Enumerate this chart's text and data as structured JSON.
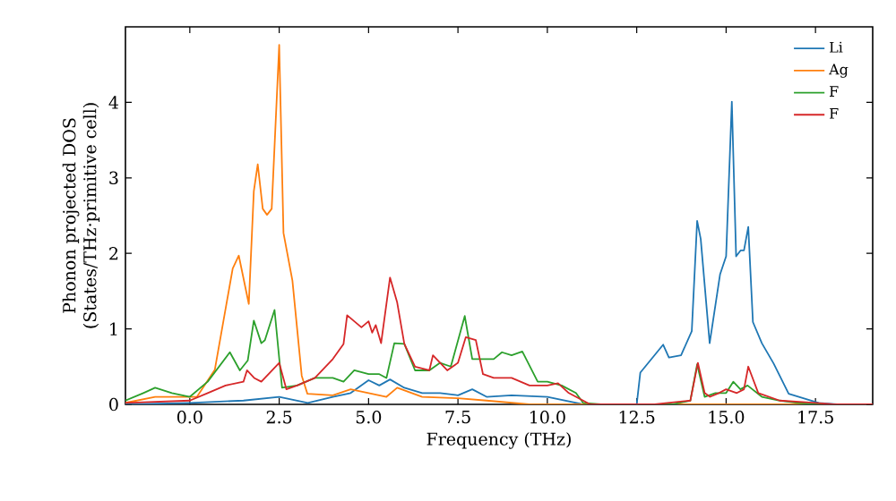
{
  "chart_data": {
    "type": "line",
    "xlabel": "Frequency (THz)",
    "ylabel": "Phonon projected DOS\n(States/THz·primitive cell)",
    "xlim": [
      -1.8,
      19.1
    ],
    "ylim": [
      0,
      5.0
    ],
    "xticks": [
      {
        "value": 0,
        "label": "0.0"
      },
      {
        "value": 2.5,
        "label": "2.5"
      },
      {
        "value": 5,
        "label": "5.0"
      },
      {
        "value": 7.5,
        "label": "7.5"
      },
      {
        "value": 10,
        "label": "10.0"
      },
      {
        "value": 12.5,
        "label": "12.5"
      },
      {
        "value": 15,
        "label": "15.0"
      },
      {
        "value": 17.5,
        "label": "17.5"
      }
    ],
    "yticks": [
      0,
      1,
      2,
      3,
      4
    ],
    "legend": "top right",
    "grid": false,
    "marker": "none",
    "line_style": "solid",
    "series": [
      {
        "name": "Li",
        "color": "#1f77b4",
        "x": [
          -1.8,
          0,
          1.5,
          2.5,
          3.3,
          4.0,
          4.5,
          5.0,
          5.3,
          5.6,
          6.0,
          6.5,
          7.0,
          7.5,
          7.9,
          8.3,
          9.0,
          10.0,
          11.0,
          12.5,
          12.6,
          13.24,
          13.4,
          13.74,
          14.04,
          14.19,
          14.29,
          14.54,
          14.83,
          15.0,
          15.16,
          15.28,
          15.41,
          15.5,
          15.62,
          15.75,
          16.0,
          16.33,
          16.75,
          17.59,
          18.1,
          19.1
        ],
        "values": [
          0.0,
          0.02,
          0.05,
          0.1,
          0.02,
          0.1,
          0.15,
          0.32,
          0.25,
          0.33,
          0.22,
          0.15,
          0.15,
          0.12,
          0.2,
          0.1,
          0.12,
          0.1,
          0.0,
          0.0,
          0.42,
          0.79,
          0.62,
          0.65,
          0.97,
          2.43,
          2.19,
          0.81,
          1.72,
          1.96,
          4.01,
          1.96,
          2.04,
          2.04,
          2.35,
          1.09,
          0.81,
          0.54,
          0.14,
          0.02,
          0.0,
          0.0
        ]
      },
      {
        "name": "Ag",
        "color": "#ff7f0e",
        "x": [
          -1.8,
          -0.97,
          0.2,
          0.7,
          1.2,
          1.37,
          1.65,
          1.79,
          1.9,
          2.04,
          2.16,
          2.29,
          2.5,
          2.62,
          2.87,
          3.13,
          3.29,
          4.0,
          4.5,
          5.0,
          5.5,
          5.8,
          6.5,
          7.5,
          8.3,
          9.5,
          19.1
        ],
        "values": [
          0.02,
          0.1,
          0.1,
          0.46,
          1.8,
          1.97,
          1.33,
          2.82,
          3.18,
          2.59,
          2.51,
          2.59,
          4.76,
          2.27,
          1.64,
          0.38,
          0.14,
          0.12,
          0.2,
          0.15,
          0.1,
          0.22,
          0.1,
          0.08,
          0.05,
          0.0,
          0.0
        ]
      },
      {
        "name": "F",
        "color": "#2ca02c",
        "x": [
          -1.8,
          -1.3,
          -0.97,
          -0.5,
          0,
          0.5,
          1.12,
          1.4,
          1.62,
          1.79,
          2.0,
          2.1,
          2.37,
          2.58,
          3.0,
          3.5,
          4.0,
          4.3,
          4.6,
          5.0,
          5.3,
          5.5,
          5.72,
          6.0,
          6.3,
          6.7,
          7.0,
          7.3,
          7.69,
          7.9,
          8.1,
          8.5,
          8.73,
          9.0,
          9.3,
          9.73,
          10.0,
          10.4,
          10.8,
          11.0,
          11.5,
          13.5,
          14.0,
          14.19,
          14.4,
          14.7,
          15.0,
          15.2,
          15.4,
          15.6,
          16.0,
          16.5,
          17.0,
          17.5,
          19.1
        ],
        "values": [
          0.05,
          0.15,
          0.22,
          0.15,
          0.1,
          0.3,
          0.69,
          0.45,
          0.58,
          1.11,
          0.81,
          0.85,
          1.25,
          0.22,
          0.25,
          0.35,
          0.35,
          0.3,
          0.45,
          0.4,
          0.4,
          0.35,
          0.81,
          0.8,
          0.45,
          0.45,
          0.55,
          0.5,
          1.17,
          0.6,
          0.6,
          0.6,
          0.69,
          0.65,
          0.7,
          0.3,
          0.3,
          0.25,
          0.15,
          0.02,
          0.0,
          0.0,
          0.05,
          0.53,
          0.1,
          0.15,
          0.15,
          0.3,
          0.2,
          0.25,
          0.1,
          0.05,
          0.02,
          0.0,
          0.0
        ]
      },
      {
        "name": "F",
        "color": "#d62728",
        "x": [
          -1.8,
          0,
          0.5,
          1.0,
          1.5,
          1.6,
          1.8,
          2.0,
          2.5,
          2.7,
          3.0,
          3.5,
          4.0,
          4.3,
          4.4,
          4.8,
          5.0,
          5.1,
          5.2,
          5.35,
          5.6,
          5.8,
          6.0,
          6.3,
          6.7,
          6.8,
          7.2,
          7.5,
          7.72,
          8.0,
          8.2,
          8.5,
          9.0,
          9.5,
          10.0,
          10.3,
          10.6,
          11.0,
          11.2,
          13.0,
          14.0,
          14.21,
          14.4,
          14.55,
          14.8,
          15.0,
          15.3,
          15.5,
          15.62,
          15.9,
          16.5,
          17.5,
          18.0,
          19.1
        ],
        "values": [
          0.02,
          0.05,
          0.15,
          0.25,
          0.3,
          0.45,
          0.35,
          0.3,
          0.55,
          0.2,
          0.25,
          0.35,
          0.6,
          0.8,
          1.18,
          1.02,
          1.1,
          0.95,
          1.05,
          0.81,
          1.68,
          1.35,
          0.8,
          0.5,
          0.45,
          0.65,
          0.45,
          0.55,
          0.89,
          0.85,
          0.4,
          0.35,
          0.35,
          0.25,
          0.25,
          0.28,
          0.15,
          0.05,
          0.0,
          0.0,
          0.05,
          0.55,
          0.15,
          0.1,
          0.15,
          0.2,
          0.15,
          0.2,
          0.5,
          0.15,
          0.05,
          0.02,
          0.0,
          0.0
        ]
      }
    ]
  }
}
